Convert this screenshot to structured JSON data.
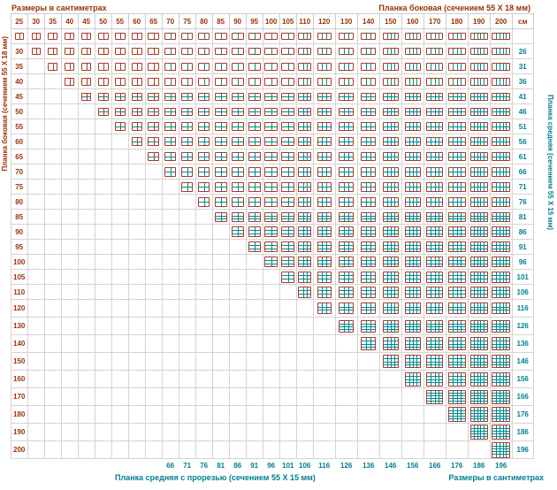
{
  "page": {
    "title_top_left": "Размеры в сантиметрах",
    "title_top_right": "Планка боковая (сечением 55 Х 18 мм)",
    "title_bottom_left": "Планка средняя с прорезью (сечением 55 Х 15 мм)",
    "title_bottom_right": "Размеры в сантиметрах",
    "label_left": "Планка боковая (сечением 55 Х 18 мм)",
    "label_right": "Планка средняя (сечением 55 Х 15 мм)",
    "unit_header": "см"
  },
  "table": {
    "column_headers": [
      "25",
      "30",
      "35",
      "40",
      "45",
      "50",
      "55",
      "60",
      "65",
      "70",
      "75",
      "80",
      "85",
      "90",
      "95",
      "100",
      "105",
      "110",
      "120",
      "130",
      "140",
      "150",
      "160",
      "170",
      "180",
      "190",
      "200"
    ],
    "row_headers": [
      "25",
      "30",
      "35",
      "40",
      "45",
      "50",
      "55",
      "60",
      "65",
      "70",
      "75",
      "80",
      "85",
      "90",
      "95",
      "100",
      "105",
      "110",
      "120",
      "130",
      "140",
      "150",
      "160",
      "170",
      "180",
      "190",
      "200"
    ],
    "right_values": [
      "",
      "26",
      "31",
      "36",
      "41",
      "46",
      "51",
      "56",
      "61",
      "66",
      "71",
      "76",
      "81",
      "86",
      "91",
      "96",
      "101",
      "106",
      "116",
      "126",
      "136",
      "146",
      "156",
      "166",
      "176",
      "186",
      "196"
    ],
    "bottom_values": [
      "",
      "",
      "",
      "",
      "",
      "",
      "",
      "",
      "",
      "66",
      "71",
      "76",
      "81",
      "86",
      "91",
      "96",
      "101",
      "106",
      "116",
      "126",
      "136",
      "146",
      "156",
      "166",
      "176",
      "186",
      "196"
    ]
  },
  "chart_data": {
    "type": "table",
    "title": "Размеры в сантиметрах",
    "columns_label": "Планка боковая (сечением 55 Х 18 мм)",
    "rows_label": "Планка боковая (сечением 55 Х 18 мм)",
    "right_axis_label": "Планка средняя (сечением 55 Х 15 мм)",
    "bottom_axis_label": "Планка средняя с прорезью (сечением 55 Х 15 мм)",
    "columns_cm": [
      25,
      30,
      35,
      40,
      45,
      50,
      55,
      60,
      65,
      70,
      75,
      80,
      85,
      90,
      95,
      100,
      105,
      110,
      120,
      130,
      140,
      150,
      160,
      170,
      180,
      190,
      200
    ],
    "rows_cm": [
      25,
      30,
      35,
      40,
      45,
      50,
      55,
      60,
      65,
      70,
      75,
      80,
      85,
      90,
      95,
      100,
      105,
      110,
      120,
      130,
      140,
      150,
      160,
      170,
      180,
      190,
      200
    ],
    "right_values_cm": [
      null,
      26,
      31,
      36,
      41,
      46,
      51,
      56,
      61,
      66,
      71,
      76,
      81,
      86,
      91,
      96,
      101,
      106,
      116,
      126,
      136,
      146,
      156,
      166,
      176,
      186,
      196
    ],
    "bottom_values_cm": [
      null,
      null,
      null,
      null,
      null,
      null,
      null,
      null,
      null,
      66,
      71,
      76,
      81,
      86,
      91,
      96,
      101,
      106,
      116,
      126,
      136,
      146,
      156,
      166,
      176,
      186,
      196
    ],
    "cell_rule": "trellis icon drawn where column value >= row value (upper triangle incl. diagonal); icon pane count grows with width/height"
  },
  "colors": {
    "maroon_text": "#993300",
    "teal_text": "#008091",
    "icon_border": "#a83a2a",
    "icon_line": "#00898f",
    "grid_line": "#d4d4d4"
  }
}
